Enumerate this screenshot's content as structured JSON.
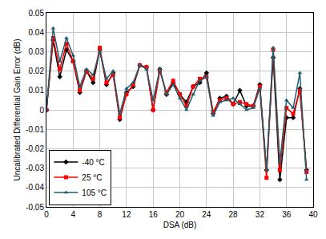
{
  "chart_data": {
    "type": "line",
    "x_label": "DSA (dB)",
    "y_label": "Uncalibrated Differential Gain Error (dB)",
    "x": [
      0,
      1,
      2,
      3,
      4,
      5,
      6,
      7,
      8,
      9,
      10,
      11,
      12,
      13,
      14,
      15,
      16,
      17,
      18,
      19,
      20,
      21,
      22,
      23,
      24,
      25,
      26,
      27,
      28,
      29,
      30,
      31,
      32,
      33,
      34,
      35,
      36,
      37,
      38,
      39
    ],
    "series": [
      {
        "name": "-40 °C",
        "color": "#000000",
        "marker": "diamond",
        "values": [
          0,
          0.036,
          0.017,
          0.031,
          0.025,
          0.009,
          0.02,
          0.014,
          0.031,
          0.013,
          0.019,
          -0.005,
          0.009,
          0.012,
          0.023,
          0.022,
          0.0,
          0.021,
          0.008,
          0.014,
          0.008,
          0.004,
          0.012,
          0.014,
          0.019,
          -0.002,
          0.006,
          0.007,
          0.003,
          0.01,
          0.002,
          0.002,
          0.013,
          -0.031,
          0.027,
          -0.036,
          -0.004,
          -0.004,
          0.011,
          -0.031
        ]
      },
      {
        "name": "25 °C",
        "color": "#ff0000",
        "marker": "square",
        "values": [
          0,
          0.037,
          0.021,
          0.034,
          0.025,
          0.01,
          0.02,
          0.016,
          0.032,
          0.014,
          0.018,
          -0.004,
          0.008,
          0.013,
          0.023,
          0.022,
          0.0,
          0.02,
          0.009,
          0.015,
          0.008,
          0.002,
          0.012,
          0.016,
          0.017,
          -0.001,
          0.005,
          0.006,
          0.003,
          0.004,
          0.003,
          0.002,
          0.012,
          -0.035,
          0.031,
          -0.031,
          0.001,
          -0.002,
          0.01,
          -0.032
        ]
      },
      {
        "name": "105 °C",
        "color": "#205d6e",
        "marker": "triangle-up",
        "values": [
          0,
          0.042,
          0.025,
          0.037,
          0.028,
          0.012,
          0.021,
          0.018,
          0.03,
          0.016,
          0.02,
          -0.002,
          0.011,
          0.014,
          0.023,
          0.021,
          0.005,
          0.021,
          0.008,
          0.013,
          0.006,
          0.0,
          0.008,
          0.015,
          0.017,
          -0.003,
          0.004,
          0.005,
          0.006,
          0.003,
          0.0,
          0.001,
          0.011,
          -0.031,
          0.032,
          -0.027,
          0.005,
          0.001,
          0.019,
          -0.036
        ]
      }
    ],
    "xlim": [
      0,
      40
    ],
    "xticks": [
      0,
      4,
      8,
      12,
      16,
      20,
      24,
      28,
      32,
      36,
      40
    ],
    "ylim": [
      -0.05,
      0.05
    ],
    "yticks": [
      -0.05,
      -0.04,
      -0.03,
      -0.02,
      -0.01,
      0,
      0.01,
      0.02,
      0.03,
      0.04,
      0.05
    ],
    "grid": true,
    "legend": "bottom left"
  }
}
